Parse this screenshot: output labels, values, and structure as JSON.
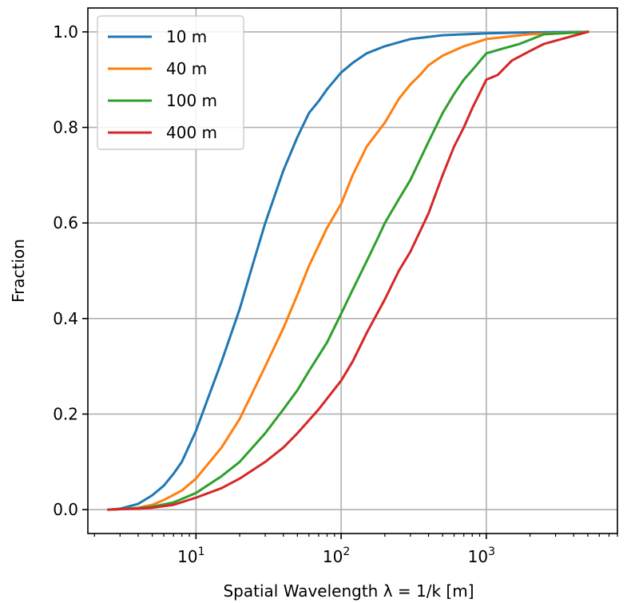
{
  "chart_data": {
    "type": "line",
    "title": "",
    "xlabel": "Spatial Wavelength λ = 1/k [m]",
    "ylabel": "Fraction",
    "xscale": "log",
    "xlim": [
      1.8,
      8000
    ],
    "ylim": [
      -0.05,
      1.05
    ],
    "grid": true,
    "legend_position": "top-left",
    "x_ticks": [
      {
        "value": 10,
        "base": "10",
        "exp": "1"
      },
      {
        "value": 100,
        "base": "10",
        "exp": "2"
      },
      {
        "value": 1000,
        "base": "10",
        "exp": "3"
      }
    ],
    "y_ticks": [
      {
        "value": 0.0,
        "label": "0.0"
      },
      {
        "value": 0.2,
        "label": "0.2"
      },
      {
        "value": 0.4,
        "label": "0.4"
      },
      {
        "value": 0.6,
        "label": "0.6"
      },
      {
        "value": 0.8,
        "label": "0.8"
      },
      {
        "value": 1.0,
        "label": "1.0"
      }
    ],
    "series": [
      {
        "name": "10 m",
        "color": "#1f77b4",
        "points": [
          [
            2.5,
            0.0
          ],
          [
            3,
            0.002
          ],
          [
            4,
            0.012
          ],
          [
            5,
            0.03
          ],
          [
            6,
            0.05
          ],
          [
            7,
            0.075
          ],
          [
            8,
            0.1
          ],
          [
            10,
            0.165
          ],
          [
            12,
            0.23
          ],
          [
            15,
            0.31
          ],
          [
            20,
            0.42
          ],
          [
            25,
            0.52
          ],
          [
            30,
            0.6
          ],
          [
            40,
            0.71
          ],
          [
            50,
            0.78
          ],
          [
            60,
            0.83
          ],
          [
            70,
            0.855
          ],
          [
            80,
            0.88
          ],
          [
            100,
            0.915
          ],
          [
            120,
            0.935
          ],
          [
            150,
            0.955
          ],
          [
            200,
            0.97
          ],
          [
            300,
            0.985
          ],
          [
            500,
            0.993
          ],
          [
            1000,
            0.997
          ],
          [
            2000,
            0.999
          ],
          [
            5000,
            1.0
          ]
        ]
      },
      {
        "name": "40 m",
        "color": "#ff7f0e",
        "points": [
          [
            2.5,
            0.0
          ],
          [
            3,
            0.001
          ],
          [
            4,
            0.004
          ],
          [
            5,
            0.01
          ],
          [
            6,
            0.02
          ],
          [
            8,
            0.04
          ],
          [
            10,
            0.065
          ],
          [
            15,
            0.13
          ],
          [
            20,
            0.19
          ],
          [
            25,
            0.25
          ],
          [
            30,
            0.3
          ],
          [
            40,
            0.38
          ],
          [
            50,
            0.45
          ],
          [
            60,
            0.51
          ],
          [
            80,
            0.59
          ],
          [
            100,
            0.64
          ],
          [
            120,
            0.7
          ],
          [
            150,
            0.76
          ],
          [
            200,
            0.81
          ],
          [
            250,
            0.86
          ],
          [
            300,
            0.89
          ],
          [
            350,
            0.91
          ],
          [
            400,
            0.93
          ],
          [
            500,
            0.95
          ],
          [
            700,
            0.97
          ],
          [
            1000,
            0.985
          ],
          [
            2000,
            0.995
          ],
          [
            5000,
            1.0
          ]
        ]
      },
      {
        "name": "100 m",
        "color": "#2ca02c",
        "points": [
          [
            2.5,
            0.0
          ],
          [
            3,
            0.001
          ],
          [
            4,
            0.003
          ],
          [
            5,
            0.006
          ],
          [
            7,
            0.015
          ],
          [
            10,
            0.035
          ],
          [
            15,
            0.07
          ],
          [
            20,
            0.1
          ],
          [
            30,
            0.16
          ],
          [
            40,
            0.21
          ],
          [
            50,
            0.25
          ],
          [
            60,
            0.29
          ],
          [
            80,
            0.35
          ],
          [
            100,
            0.41
          ],
          [
            120,
            0.46
          ],
          [
            150,
            0.52
          ],
          [
            180,
            0.57
          ],
          [
            200,
            0.6
          ],
          [
            250,
            0.65
          ],
          [
            300,
            0.69
          ],
          [
            400,
            0.77
          ],
          [
            500,
            0.83
          ],
          [
            600,
            0.87
          ],
          [
            700,
            0.9
          ],
          [
            800,
            0.92
          ],
          [
            1000,
            0.955
          ],
          [
            1300,
            0.965
          ],
          [
            1700,
            0.975
          ],
          [
            2500,
            0.995
          ],
          [
            5000,
            1.0
          ]
        ]
      },
      {
        "name": "400 m",
        "color": "#d62728",
        "points": [
          [
            2.5,
            0.0
          ],
          [
            3,
            0.001
          ],
          [
            4,
            0.002
          ],
          [
            5,
            0.004
          ],
          [
            7,
            0.01
          ],
          [
            10,
            0.025
          ],
          [
            15,
            0.045
          ],
          [
            20,
            0.065
          ],
          [
            30,
            0.1
          ],
          [
            40,
            0.13
          ],
          [
            50,
            0.16
          ],
          [
            70,
            0.21
          ],
          [
            100,
            0.27
          ],
          [
            120,
            0.31
          ],
          [
            150,
            0.37
          ],
          [
            200,
            0.44
          ],
          [
            250,
            0.5
          ],
          [
            300,
            0.54
          ],
          [
            400,
            0.62
          ],
          [
            500,
            0.7
          ],
          [
            600,
            0.76
          ],
          [
            700,
            0.8
          ],
          [
            800,
            0.84
          ],
          [
            1000,
            0.9
          ],
          [
            1200,
            0.91
          ],
          [
            1500,
            0.94
          ],
          [
            2000,
            0.96
          ],
          [
            2500,
            0.975
          ],
          [
            5000,
            1.0
          ]
        ]
      }
    ]
  }
}
